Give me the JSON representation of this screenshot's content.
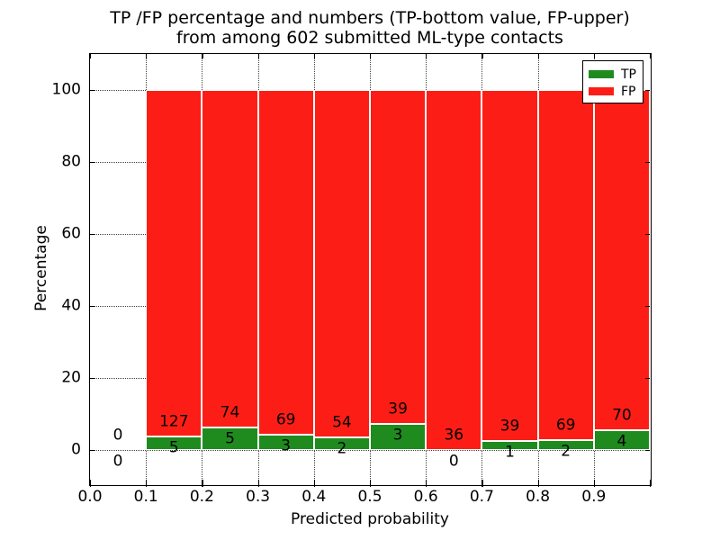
{
  "figure": {
    "title_line1": "TP /FP percentage and numbers (TP-bottom value, FP-upper)",
    "title_line2": "from among 602 submitted ML-type contacts"
  },
  "axes": {
    "xlabel": "Predicted probability",
    "ylabel": "Percentage",
    "x_tick_labels": [
      "0.0",
      "0.1",
      "0.2",
      "0.3",
      "0.4",
      "0.5",
      "0.6",
      "0.7",
      "0.8",
      "0.9"
    ],
    "y_tick_labels": [
      "0",
      "20",
      "40",
      "60",
      "80",
      "100"
    ],
    "y_tick_values": [
      0,
      20,
      40,
      60,
      80,
      100
    ]
  },
  "legend": {
    "items": [
      {
        "label": "TP",
        "color": "#1f8b1f"
      },
      {
        "label": "FP",
        "color": "#fc1e16"
      }
    ]
  },
  "chart_data": {
    "type": "bar",
    "subtype": "stacked-percentage",
    "title": "TP /FP percentage and numbers (TP-bottom value, FP-upper) from among 602 submitted ML-type contacts",
    "xlabel": "Predicted probability",
    "ylabel": "Percentage",
    "xlim": [
      0.0,
      1.0
    ],
    "ylim_percent": [
      -9.5,
      110
    ],
    "grid": "dotted",
    "legend_position": "upper-right",
    "bin_width": 0.1,
    "total_contacts": 602,
    "series_names": [
      "TP",
      "FP"
    ],
    "bins": [
      {
        "x_start": 0.0,
        "tp": 0,
        "fp": 0
      },
      {
        "x_start": 0.1,
        "tp": 5,
        "fp": 127
      },
      {
        "x_start": 0.2,
        "tp": 5,
        "fp": 74
      },
      {
        "x_start": 0.3,
        "tp": 3,
        "fp": 69
      },
      {
        "x_start": 0.4,
        "tp": 2,
        "fp": 54
      },
      {
        "x_start": 0.5,
        "tp": 3,
        "fp": 39
      },
      {
        "x_start": 0.6,
        "tp": 0,
        "fp": 36
      },
      {
        "x_start": 0.7,
        "tp": 1,
        "fp": 39
      },
      {
        "x_start": 0.8,
        "tp": 2,
        "fp": 69
      },
      {
        "x_start": 0.9,
        "tp": 4,
        "fp": 70
      }
    ],
    "colors": {
      "tp": "#1f8b1f",
      "fp": "#fc1e16",
      "bar_edge": "#ffffff"
    }
  }
}
